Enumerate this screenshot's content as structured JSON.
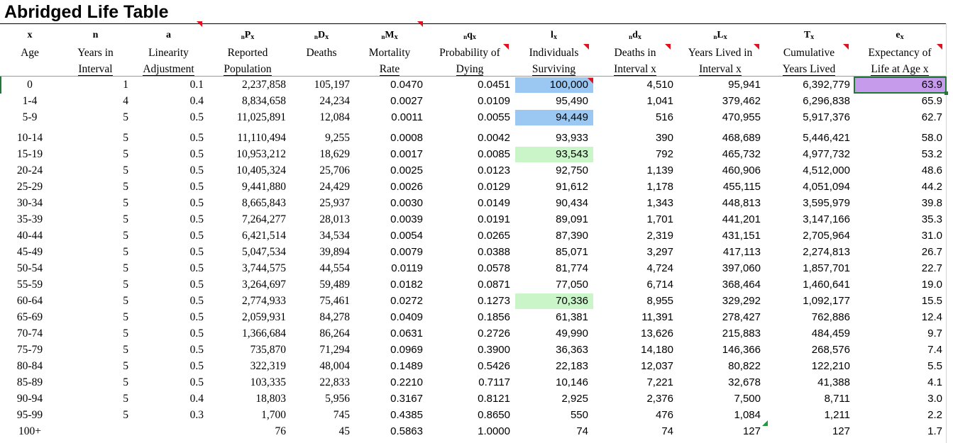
{
  "title": "Abridged Life Table",
  "headers": [
    {
      "sym": "x",
      "pre": "",
      "sub": "",
      "line1": "",
      "line2": "Age"
    },
    {
      "sym": "n",
      "pre": "",
      "sub": "",
      "line1": "Years in",
      "line2": "Interval"
    },
    {
      "sym": "a",
      "pre": "",
      "sub": "",
      "line1": "Linearity",
      "line2": "Adjustment"
    },
    {
      "sym": "P",
      "pre": "n",
      "sub": "x",
      "line1": "Reported",
      "line2": "Population"
    },
    {
      "sym": "D",
      "pre": "n",
      "sub": "x",
      "line1": "Deaths",
      "line2": ""
    },
    {
      "sym": "M",
      "pre": "n",
      "sub": "x",
      "line1": "Mortality",
      "line2": "Rate"
    },
    {
      "sym": "q",
      "pre": "n",
      "sub": "x",
      "line1": "Probability of",
      "line2": "Dying"
    },
    {
      "sym": "l",
      "pre": "",
      "sub": "x",
      "line1": "Individuals",
      "line2": "Surviving"
    },
    {
      "sym": "d",
      "pre": "n",
      "sub": "x",
      "line1": "Deaths in",
      "line2": "Interval x"
    },
    {
      "sym": "L",
      "pre": "n",
      "sub": "x",
      "line1": "Years Lived in",
      "line2": "Interval x"
    },
    {
      "sym": "T",
      "pre": "",
      "sub": "x",
      "line1": "Cumulative",
      "line2": "Years Lived"
    },
    {
      "sym": "e",
      "pre": "",
      "sub": "x",
      "line1": "Expectancy of",
      "line2": "Life at Age x"
    }
  ],
  "rows": [
    [
      "0",
      "1",
      "0.1",
      "2,237,858",
      "105,197",
      "0.0470",
      "0.0451",
      "100,000",
      "4,510",
      "95,941",
      "6,392,779",
      "63.9"
    ],
    [
      "1-4",
      "4",
      "0.4",
      "8,834,658",
      "24,234",
      "0.0027",
      "0.0109",
      "95,490",
      "1,041",
      "379,462",
      "6,296,838",
      "65.9"
    ],
    [
      "5-9",
      "5",
      "0.5",
      "11,025,891",
      "12,084",
      "0.0011",
      "0.0055",
      "94,449",
      "516",
      "470,955",
      "5,917,376",
      "62.7"
    ],
    [
      "10-14",
      "5",
      "0.5",
      "11,110,494",
      "9,255",
      "0.0008",
      "0.0042",
      "93,933",
      "390",
      "468,689",
      "5,446,421",
      "58.0"
    ],
    [
      "15-19",
      "5",
      "0.5",
      "10,953,212",
      "18,629",
      "0.0017",
      "0.0085",
      "93,543",
      "792",
      "465,732",
      "4,977,732",
      "53.2"
    ],
    [
      "20-24",
      "5",
      "0.5",
      "10,405,324",
      "25,706",
      "0.0025",
      "0.0123",
      "92,750",
      "1,139",
      "460,906",
      "4,512,000",
      "48.6"
    ],
    [
      "25-29",
      "5",
      "0.5",
      "9,441,880",
      "24,429",
      "0.0026",
      "0.0129",
      "91,612",
      "1,178",
      "455,115",
      "4,051,094",
      "44.2"
    ],
    [
      "30-34",
      "5",
      "0.5",
      "8,665,843",
      "25,937",
      "0.0030",
      "0.0149",
      "90,434",
      "1,343",
      "448,813",
      "3,595,979",
      "39.8"
    ],
    [
      "35-39",
      "5",
      "0.5",
      "7,264,277",
      "28,013",
      "0.0039",
      "0.0191",
      "89,091",
      "1,701",
      "441,201",
      "3,147,166",
      "35.3"
    ],
    [
      "40-44",
      "5",
      "0.5",
      "6,421,514",
      "34,534",
      "0.0054",
      "0.0265",
      "87,390",
      "2,319",
      "431,151",
      "2,705,964",
      "31.0"
    ],
    [
      "45-49",
      "5",
      "0.5",
      "5,047,534",
      "39,894",
      "0.0079",
      "0.0388",
      "85,071",
      "3,297",
      "417,113",
      "2,274,813",
      "26.7"
    ],
    [
      "50-54",
      "5",
      "0.5",
      "3,744,575",
      "44,554",
      "0.0119",
      "0.0578",
      "81,774",
      "4,724",
      "397,060",
      "1,857,701",
      "22.7"
    ],
    [
      "55-59",
      "5",
      "0.5",
      "3,264,697",
      "59,489",
      "0.0182",
      "0.0871",
      "77,050",
      "6,714",
      "368,464",
      "1,460,641",
      "19.0"
    ],
    [
      "60-64",
      "5",
      "0.5",
      "2,774,933",
      "75,461",
      "0.0272",
      "0.1273",
      "70,336",
      "8,955",
      "329,292",
      "1,092,177",
      "15.5"
    ],
    [
      "65-69",
      "5",
      "0.5",
      "2,059,931",
      "84,278",
      "0.0409",
      "0.1856",
      "61,381",
      "11,391",
      "278,427",
      "762,886",
      "12.4"
    ],
    [
      "70-74",
      "5",
      "0.5",
      "1,366,684",
      "86,264",
      "0.0631",
      "0.2726",
      "49,990",
      "13,626",
      "215,883",
      "484,459",
      "9.7"
    ],
    [
      "75-79",
      "5",
      "0.5",
      "735,870",
      "71,294",
      "0.0969",
      "0.3900",
      "36,363",
      "14,180",
      "146,366",
      "268,576",
      "7.4"
    ],
    [
      "80-84",
      "5",
      "0.5",
      "322,319",
      "48,004",
      "0.1489",
      "0.5426",
      "22,183",
      "12,037",
      "80,822",
      "122,210",
      "5.5"
    ],
    [
      "85-89",
      "5",
      "0.5",
      "103,335",
      "22,833",
      "0.2210",
      "0.7117",
      "10,146",
      "7,221",
      "32,678",
      "41,388",
      "4.1"
    ],
    [
      "90-94",
      "5",
      "0.4",
      "18,803",
      "5,956",
      "0.3167",
      "0.8121",
      "2,925",
      "2,376",
      "7,500",
      "8,711",
      "3.0"
    ],
    [
      "95-99",
      "5",
      "0.3",
      "1,700",
      "745",
      "0.4385",
      "0.8650",
      "550",
      "476",
      "1,084",
      "1,211",
      "2.2"
    ],
    [
      "100+",
      "",
      "",
      "76",
      "45",
      "0.5863",
      "1.0000",
      "74",
      "74",
      "127",
      "127",
      "1.7"
    ]
  ],
  "colors": {
    "highlight_blue": "#9bc8f2",
    "highlight_green": "#c9f5c9",
    "highlight_purple": "#c79bec",
    "selection_green": "#1f7a3a",
    "comment_red": "#e0101f"
  },
  "highlights": [
    {
      "row": 0,
      "col": 7,
      "color": "blue"
    },
    {
      "row": 2,
      "col": 7,
      "color": "blue"
    },
    {
      "row": 4,
      "col": 7,
      "color": "green"
    },
    {
      "row": 13,
      "col": 7,
      "color": "green"
    },
    {
      "row": 0,
      "col": 11,
      "color": "purple"
    }
  ]
}
